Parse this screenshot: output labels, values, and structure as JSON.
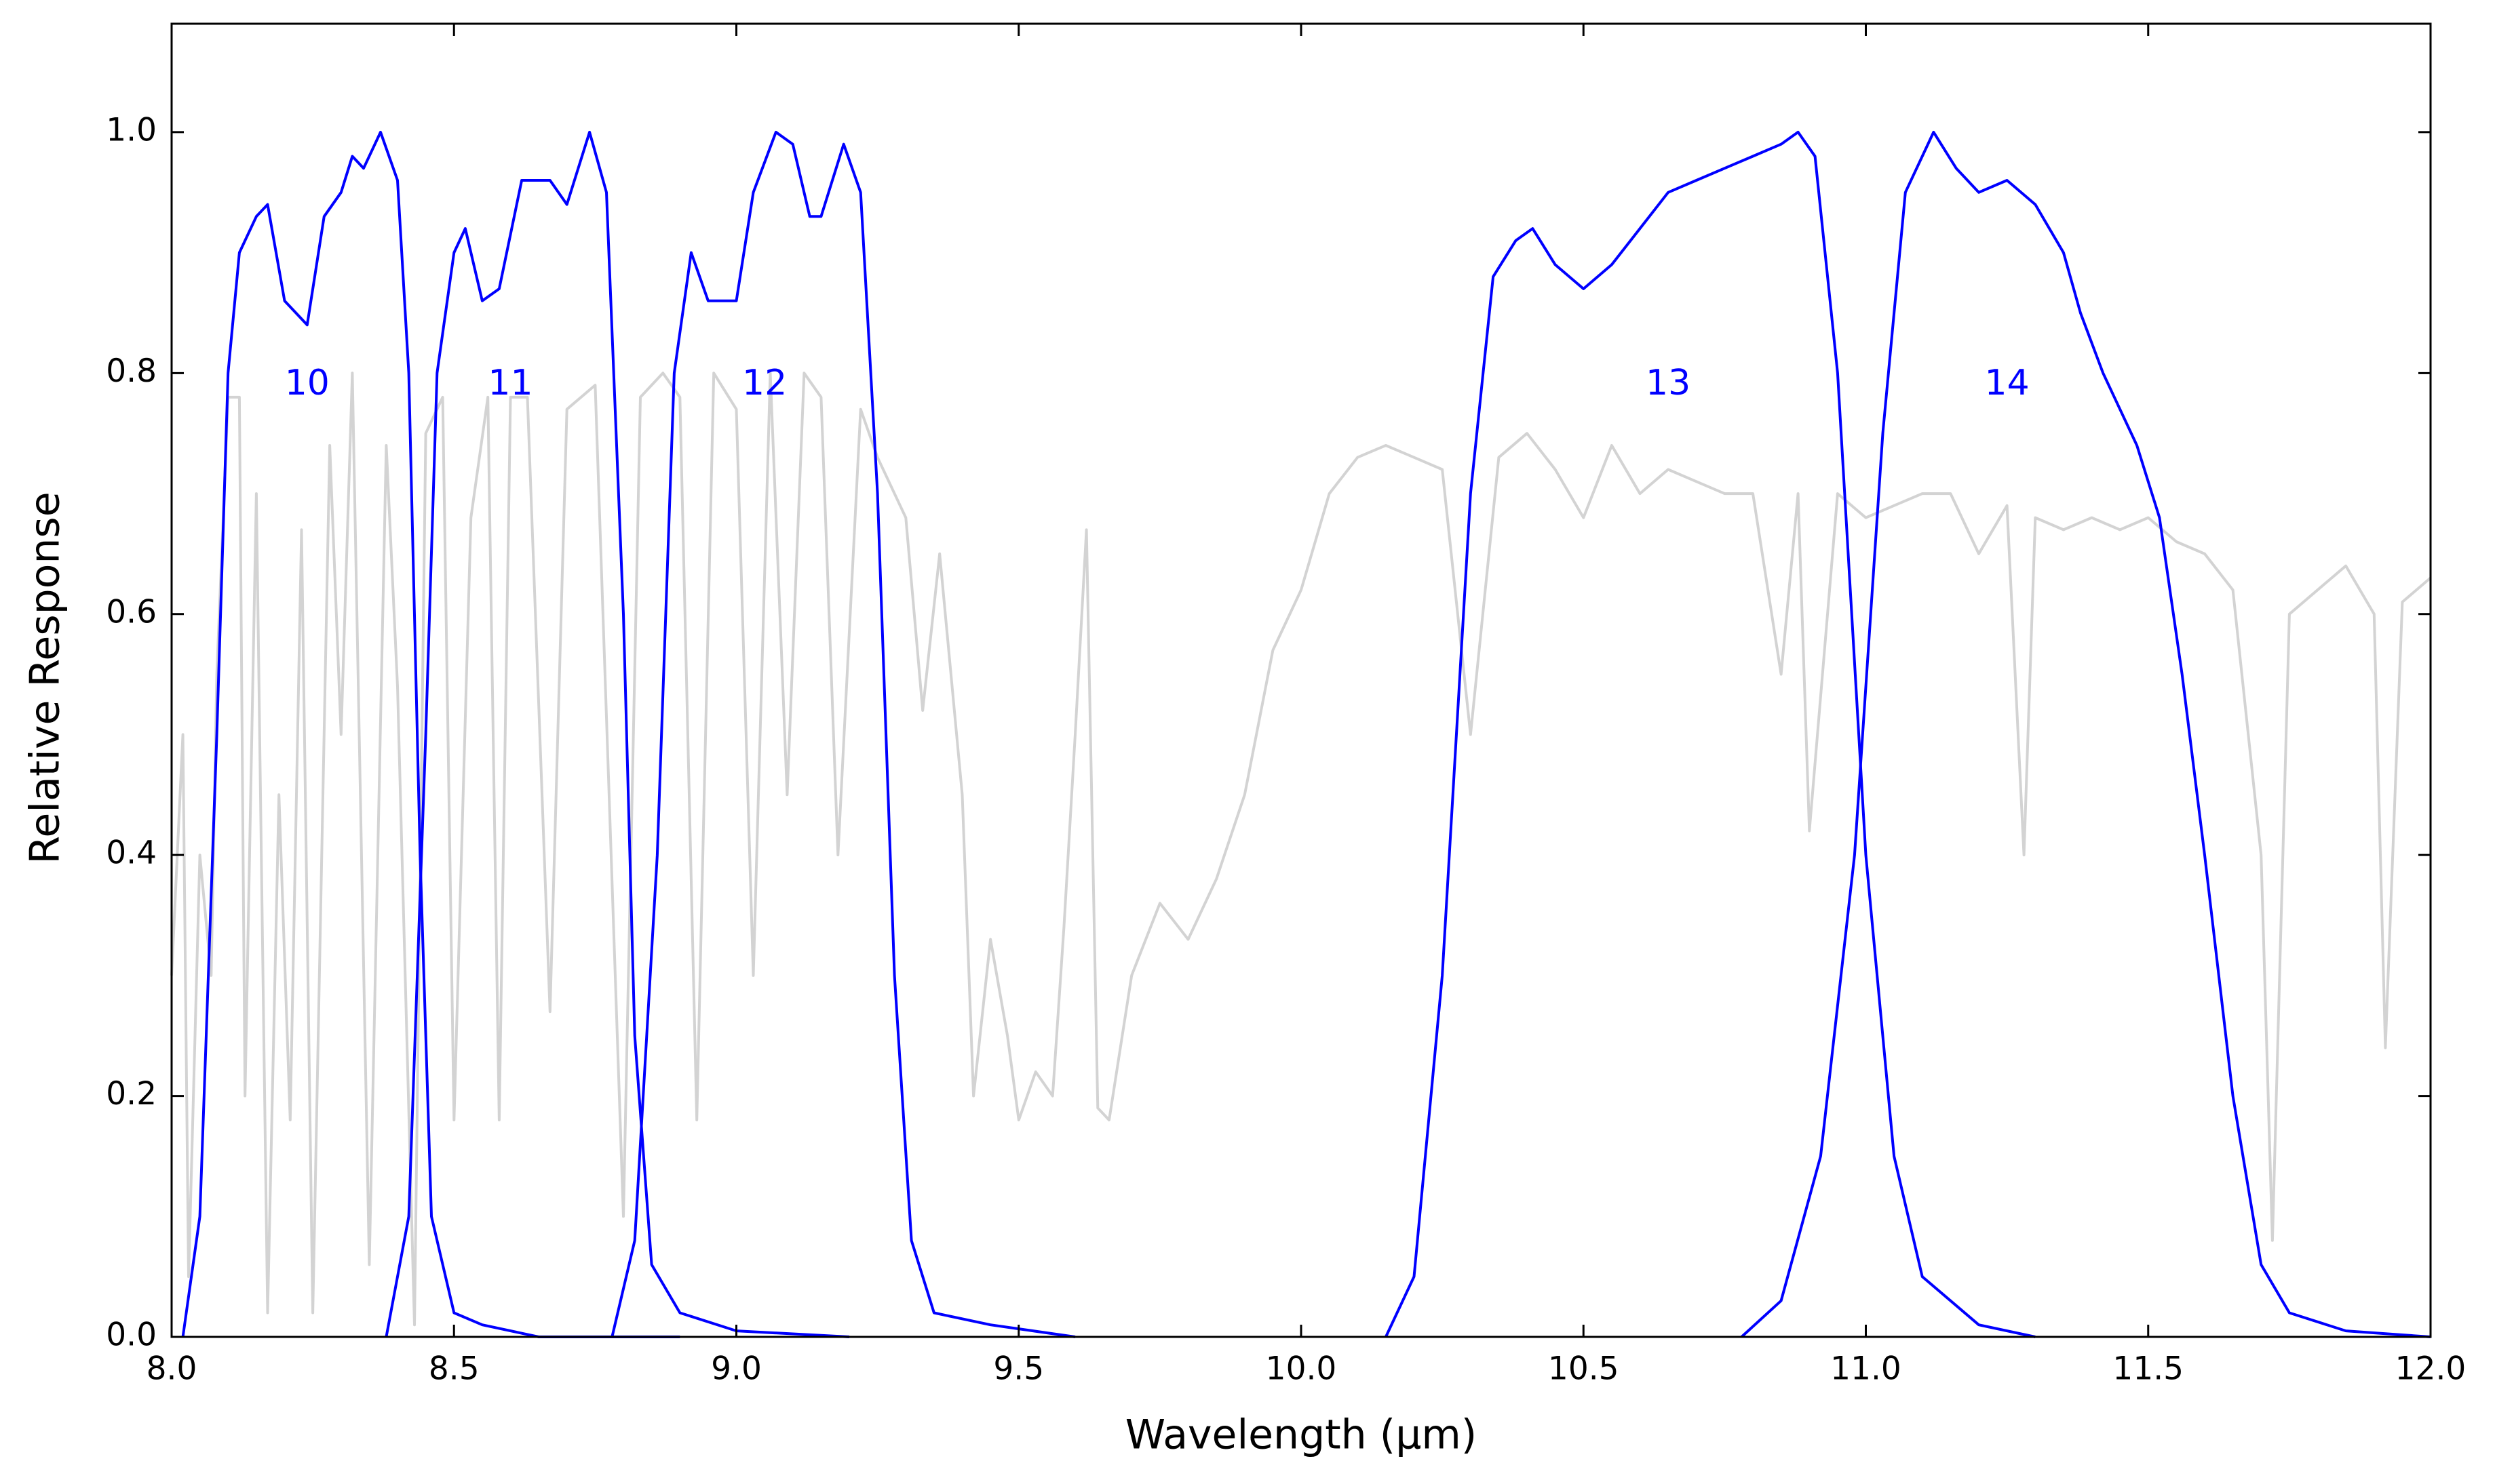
{
  "chart_data": {
    "type": "line",
    "xlabel": "Wavelength (μm)",
    "ylabel": "Relative Response",
    "xlim": [
      8,
      12
    ],
    "ylim": [
      0,
      1.09
    ],
    "xticks": [
      {
        "value": 8,
        "label": "8.0"
      },
      8.5,
      {
        "value": 9,
        "label": "9.0"
      },
      9.5,
      {
        "value": 10,
        "label": "10.0"
      },
      10.5,
      {
        "value": 11,
        "label": "11.0"
      },
      11.5,
      {
        "value": 12,
        "label": "12.0"
      }
    ],
    "yticks": [
      {
        "value": 0,
        "label": "0.0"
      },
      0.2,
      0.4,
      0.6,
      0.8,
      {
        "value": 1,
        "label": "1.0"
      }
    ],
    "grid": false,
    "series": [
      {
        "color": "#d3d3d3",
        "x": [
          8.0,
          8.02,
          8.03,
          8.05,
          8.07,
          8.08,
          8.1,
          8.12,
          8.13,
          8.15,
          8.17,
          8.19,
          8.21,
          8.23,
          8.25,
          8.28,
          8.3,
          8.32,
          8.35,
          8.38,
          8.4,
          8.43,
          8.45,
          8.48,
          8.5,
          8.53,
          8.56,
          8.58,
          8.6,
          8.63,
          8.67,
          8.7,
          8.75,
          8.8,
          8.83,
          8.87,
          8.9,
          8.93,
          8.96,
          9.0,
          9.03,
          9.06,
          9.09,
          9.12,
          9.15,
          9.18,
          9.22,
          9.25,
          9.3,
          9.33,
          9.36,
          9.4,
          9.42,
          9.45,
          9.48,
          9.5,
          9.53,
          9.56,
          9.58,
          9.6,
          9.62,
          9.64,
          9.66,
          9.7,
          9.75,
          9.8,
          9.85,
          9.9,
          9.95,
          10.0,
          10.05,
          10.1,
          10.15,
          10.2,
          10.25,
          10.3,
          10.35,
          10.4,
          10.45,
          10.5,
          10.55,
          10.6,
          10.65,
          10.7,
          10.75,
          10.8,
          10.85,
          10.88,
          10.9,
          10.95,
          11.0,
          11.05,
          11.1,
          11.15,
          11.2,
          11.25,
          11.28,
          11.3,
          11.35,
          11.4,
          11.45,
          11.5,
          11.55,
          11.6,
          11.65,
          11.7,
          11.72,
          11.75,
          11.8,
          11.85,
          11.9,
          11.92,
          11.95,
          12.0
        ],
        "values": [
          0.3,
          0.5,
          0.05,
          0.4,
          0.3,
          0.55,
          0.78,
          0.78,
          0.2,
          0.7,
          0.02,
          0.45,
          0.18,
          0.67,
          0.02,
          0.74,
          0.5,
          0.8,
          0.06,
          0.74,
          0.54,
          0.01,
          0.75,
          0.78,
          0.18,
          0.68,
          0.78,
          0.18,
          0.78,
          0.78,
          0.27,
          0.77,
          0.79,
          0.1,
          0.78,
          0.8,
          0.78,
          0.18,
          0.8,
          0.77,
          0.3,
          0.8,
          0.45,
          0.8,
          0.78,
          0.4,
          0.77,
          0.73,
          0.68,
          0.52,
          0.65,
          0.45,
          0.2,
          0.33,
          0.25,
          0.18,
          0.22,
          0.2,
          0.34,
          0.5,
          0.67,
          0.19,
          0.18,
          0.3,
          0.36,
          0.33,
          0.38,
          0.45,
          0.57,
          0.62,
          0.7,
          0.73,
          0.74,
          0.73,
          0.72,
          0.5,
          0.73,
          0.75,
          0.72,
          0.68,
          0.74,
          0.7,
          0.72,
          0.71,
          0.7,
          0.7,
          0.55,
          0.7,
          0.42,
          0.7,
          0.68,
          0.69,
          0.7,
          0.7,
          0.65,
          0.69,
          0.4,
          0.68,
          0.67,
          0.68,
          0.67,
          0.68,
          0.66,
          0.65,
          0.62,
          0.4,
          0.08,
          0.6,
          0.62,
          0.64,
          0.6,
          0.24,
          0.61,
          0.63
        ]
      },
      {
        "color": "#0000ff",
        "x": [
          8.02,
          8.05,
          8.08,
          8.1,
          8.12,
          8.15,
          8.17,
          8.2,
          8.22,
          8.24,
          8.27,
          8.3,
          8.32,
          8.34,
          8.37,
          8.4,
          8.42,
          8.44,
          8.46,
          8.5,
          8.55,
          8.65,
          8.9
        ],
        "values": [
          0,
          0.1,
          0.5,
          0.8,
          0.9,
          0.93,
          0.94,
          0.86,
          0.85,
          0.84,
          0.93,
          0.95,
          0.98,
          0.97,
          1.0,
          0.96,
          0.8,
          0.4,
          0.1,
          0.02,
          0.01,
          0,
          0
        ]
      },
      {
        "color": "#0000ff",
        "x": [
          8.38,
          8.42,
          8.45,
          8.47,
          8.5,
          8.52,
          8.55,
          8.58,
          8.62,
          8.65,
          8.67,
          8.7,
          8.74,
          8.77,
          8.8,
          8.82,
          8.85,
          8.9,
          9.0,
          9.2
        ],
        "values": [
          0,
          0.1,
          0.5,
          0.8,
          0.9,
          0.92,
          0.86,
          0.87,
          0.96,
          0.96,
          0.96,
          0.94,
          1.0,
          0.95,
          0.6,
          0.25,
          0.06,
          0.02,
          0.005,
          0
        ]
      },
      {
        "color": "#0000ff",
        "x": [
          8.78,
          8.82,
          8.86,
          8.89,
          8.92,
          8.95,
          9.0,
          9.03,
          9.07,
          9.1,
          9.13,
          9.15,
          9.19,
          9.22,
          9.25,
          9.28,
          9.31,
          9.35,
          9.45,
          9.6
        ],
        "values": [
          0,
          0.08,
          0.4,
          0.8,
          0.9,
          0.86,
          0.86,
          0.95,
          1.0,
          0.99,
          0.93,
          0.93,
          0.99,
          0.95,
          0.7,
          0.3,
          0.08,
          0.02,
          0.01,
          0
        ]
      },
      {
        "color": "#0000ff",
        "x": [
          10.15,
          10.2,
          10.25,
          10.3,
          10.34,
          10.38,
          10.41,
          10.45,
          10.5,
          10.55,
          10.6,
          10.65,
          10.7,
          10.75,
          10.8,
          10.85,
          10.88,
          10.91,
          10.95,
          11.0,
          11.05,
          11.1,
          11.2,
          11.3
        ],
        "values": [
          0,
          0.05,
          0.3,
          0.7,
          0.88,
          0.91,
          0.92,
          0.89,
          0.87,
          0.89,
          0.92,
          0.95,
          0.96,
          0.97,
          0.98,
          0.99,
          1.0,
          0.98,
          0.8,
          0.4,
          0.15,
          0.05,
          0.01,
          0
        ]
      },
      {
        "color": "#0000ff",
        "x": [
          10.78,
          10.85,
          10.92,
          10.98,
          11.03,
          11.07,
          11.12,
          11.16,
          11.2,
          11.25,
          11.3,
          11.35,
          11.38,
          11.42,
          11.48,
          11.52,
          11.56,
          11.6,
          11.65,
          11.7,
          11.75,
          11.85,
          12.0
        ],
        "values": [
          0,
          0.03,
          0.15,
          0.4,
          0.75,
          0.95,
          1.0,
          0.97,
          0.95,
          0.96,
          0.94,
          0.9,
          0.85,
          0.8,
          0.74,
          0.68,
          0.55,
          0.4,
          0.2,
          0.06,
          0.02,
          0.005,
          0
        ]
      }
    ],
    "annotations": [
      {
        "text": "10",
        "x": 8.24,
        "y": 0.79,
        "color": "#0000ff"
      },
      {
        "text": "11",
        "x": 8.6,
        "y": 0.79,
        "color": "#0000ff"
      },
      {
        "text": "12",
        "x": 9.05,
        "y": 0.79,
        "color": "#0000ff"
      },
      {
        "text": "13",
        "x": 10.65,
        "y": 0.79,
        "color": "#0000ff"
      },
      {
        "text": "14",
        "x": 11.25,
        "y": 0.79,
        "color": "#0000ff"
      }
    ]
  }
}
